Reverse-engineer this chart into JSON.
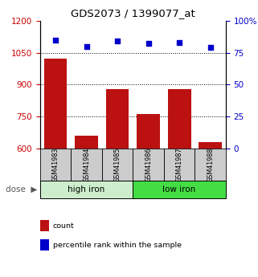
{
  "title": "GDS2073 / 1399077_at",
  "samples": [
    "GSM41983",
    "GSM41984",
    "GSM41985",
    "GSM41986",
    "GSM41987",
    "GSM41988"
  ],
  "bar_values": [
    1020,
    660,
    880,
    760,
    880,
    630
  ],
  "percentile_values": [
    85,
    80,
    84,
    82,
    83,
    79
  ],
  "bar_color": "#bb1111",
  "percentile_color": "#0000cc",
  "ylim_left": [
    600,
    1200
  ],
  "ylim_right": [
    0,
    100
  ],
  "yticks_left": [
    600,
    750,
    900,
    1050,
    1200
  ],
  "yticks_right": [
    0,
    25,
    50,
    75,
    100
  ],
  "group_configs": [
    {
      "indices": [
        0,
        1,
        2
      ],
      "label": "high iron",
      "color": "#cceecc"
    },
    {
      "indices": [
        3,
        4,
        5
      ],
      "label": "low iron",
      "color": "#44dd44"
    }
  ],
  "dose_label": "dose",
  "legend_items": [
    {
      "label": "count",
      "color": "#bb1111"
    },
    {
      "label": "percentile rank within the sample",
      "color": "#0000cc"
    }
  ],
  "bar_width": 0.75,
  "tick_color_left": "#cc0000",
  "tick_color_right": "#0000cc",
  "sample_box_color": "#cccccc",
  "grid_linestyle": "dotted",
  "grid_color": "#000000",
  "grid_linewidth": 0.7
}
